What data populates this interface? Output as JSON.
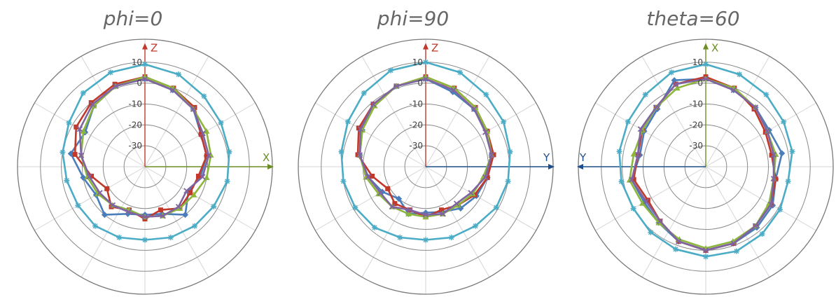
{
  "chart_data": [
    {
      "type": "polar-line",
      "title": "phi=0",
      "r_axis": {
        "range": [
          -40,
          10
        ],
        "ticks": [
          "10",
          "0",
          "-10",
          "-20",
          "-30"
        ]
      },
      "axis_labels": {
        "vertical": "Z",
        "horizontal": "X",
        "vertical_color": "#c0392b",
        "horizontal_color": "#6b8e23"
      },
      "series": [
        {
          "color": "#4a7ebb",
          "marker": "diamond",
          "angles": [
            0,
            20,
            40,
            60,
            80,
            100,
            120,
            140,
            160,
            180,
            200,
            220,
            240,
            260,
            280,
            300,
            320,
            340
          ],
          "values": [
            2,
            -1,
            -4,
            -9,
            -10,
            -13,
            -16,
            -10,
            -16,
            -17,
            -16,
            -10,
            -13,
            -10,
            -4,
            -7,
            -2,
            1
          ]
        },
        {
          "color": "#c0392b",
          "marker": "square",
          "angles": [
            0,
            20,
            40,
            60,
            80,
            100,
            120,
            140,
            160,
            180,
            200,
            220,
            240,
            260,
            280,
            300,
            320,
            340
          ],
          "values": [
            3,
            0,
            -3,
            -9,
            -10,
            -14,
            -15,
            -14,
            -18,
            -15,
            -18,
            -15,
            -19,
            -14,
            -6,
            -2,
            0,
            2
          ]
        },
        {
          "color": "#8cb63c",
          "marker": "triangle",
          "angles": [
            0,
            20,
            40,
            60,
            80,
            100,
            120,
            140,
            160,
            180,
            200,
            220,
            240,
            260,
            280,
            300,
            320,
            340
          ],
          "values": [
            3,
            0,
            -4,
            -6,
            -8,
            -10,
            -13,
            -14,
            -15,
            -16,
            -18,
            -16,
            -14,
            -12,
            -9,
            -6,
            -2,
            1
          ]
        },
        {
          "color": "#8064a2",
          "marker": "x",
          "angles": [
            0,
            20,
            40,
            60,
            80,
            100,
            120,
            140,
            160,
            180,
            200,
            220,
            240,
            260,
            280,
            300,
            320,
            340
          ],
          "values": [
            2,
            -1,
            -4,
            -8,
            -9,
            -12,
            -17,
            -15,
            -15,
            -16,
            -17,
            -16,
            -15,
            -13,
            -9,
            -4,
            -1,
            1
          ]
        },
        {
          "color": "#4bacc6",
          "marker": "star",
          "angles": [
            0,
            20,
            40,
            60,
            80,
            100,
            120,
            140,
            160,
            180,
            200,
            220,
            240,
            260,
            280,
            300,
            320,
            340
          ],
          "values": [
            9,
            7,
            4,
            2,
            1,
            0,
            -2,
            -3,
            -4,
            -5,
            -4,
            -3,
            -3,
            -2,
            0,
            2,
            6,
            8
          ]
        }
      ]
    },
    {
      "type": "polar-line",
      "title": "phi=90",
      "r_axis": {
        "range": [
          -40,
          10
        ],
        "ticks": [
          "10",
          "0",
          "-10",
          "-20",
          "-30"
        ]
      },
      "axis_labels": {
        "vertical": "Z",
        "horizontal": "Y",
        "vertical_color": "#c0392b",
        "horizontal_color": "#1f4e8c"
      },
      "series": [
        {
          "color": "#4a7ebb",
          "marker": "diamond",
          "angles": [
            0,
            20,
            40,
            60,
            80,
            100,
            120,
            140,
            160,
            180,
            200,
            220,
            240,
            260,
            280,
            300,
            320,
            340
          ],
          "values": [
            2,
            -2,
            -4,
            -6,
            -8,
            -10,
            -12,
            -14,
            -17,
            -18,
            -16,
            -20,
            -16,
            -12,
            -8,
            -5,
            -1,
            1
          ]
        },
        {
          "color": "#c0392b",
          "marker": "square",
          "angles": [
            0,
            20,
            40,
            60,
            80,
            100,
            120,
            140,
            160,
            180,
            200,
            220,
            240,
            260,
            280,
            300,
            320,
            340
          ],
          "values": [
            3,
            0,
            -3,
            -6,
            -7,
            -10,
            -13,
            -16,
            -18,
            -16,
            -18,
            -17,
            -19,
            -14,
            -7,
            -3,
            -1,
            1
          ]
        },
        {
          "color": "#8cb63c",
          "marker": "triangle",
          "angles": [
            0,
            20,
            40,
            60,
            80,
            100,
            120,
            140,
            160,
            180,
            200,
            220,
            240,
            260,
            280,
            300,
            320,
            340
          ],
          "values": [
            3,
            0,
            -3,
            -6,
            -8,
            -12,
            -14,
            -16,
            -16,
            -16,
            -16,
            -15,
            -14,
            -11,
            -8,
            -5,
            -2,
            1
          ]
        },
        {
          "color": "#8064a2",
          "marker": "x",
          "angles": [
            0,
            20,
            40,
            60,
            80,
            100,
            120,
            140,
            160,
            180,
            200,
            220,
            240,
            260,
            280,
            300,
            320,
            340
          ],
          "values": [
            2,
            -1,
            -4,
            -7,
            -8,
            -11,
            -15,
            -17,
            -16,
            -17,
            -18,
            -15,
            -15,
            -12,
            -8,
            -4,
            -1,
            1
          ]
        },
        {
          "color": "#4bacc6",
          "marker": "star",
          "angles": [
            0,
            20,
            40,
            60,
            80,
            100,
            120,
            140,
            160,
            180,
            200,
            220,
            240,
            260,
            280,
            300,
            320,
            340
          ],
          "values": [
            10,
            8,
            5,
            3,
            1,
            0,
            -1,
            -3,
            -4,
            -5,
            -4,
            -2,
            -1,
            0,
            1,
            3,
            6,
            9
          ]
        }
      ]
    },
    {
      "type": "polar-line",
      "title": "theta=60",
      "r_axis": {
        "range": [
          -40,
          10
        ],
        "ticks": [
          "10",
          "0",
          "-10",
          "-20",
          "-30"
        ]
      },
      "axis_labels": {
        "vertical": "X",
        "horizontal": "Y",
        "vertical_color": "#6b8e23",
        "horizontal_color": "#1f4e8c"
      },
      "series": [
        {
          "color": "#4a7ebb",
          "marker": "diamond",
          "angles": [
            0,
            20,
            40,
            60,
            80,
            100,
            120,
            140,
            160,
            180,
            200,
            220,
            240,
            260,
            280,
            300,
            320,
            340
          ],
          "values": [
            2,
            -1,
            -3,
            -5,
            -3,
            -6,
            -3,
            -2,
            -1,
            0,
            -2,
            -5,
            -6,
            -4,
            -8,
            -6,
            -4,
            4
          ]
        },
        {
          "color": "#c0392b",
          "marker": "square",
          "angles": [
            0,
            20,
            40,
            60,
            80,
            100,
            120,
            140,
            160,
            180,
            200,
            220,
            240,
            260,
            280,
            300,
            320,
            340
          ],
          "values": [
            3,
            0,
            -4,
            -7,
            -8,
            -6,
            -4,
            -3,
            -1,
            0,
            -2,
            -6,
            -8,
            -5,
            -7,
            -5,
            -3,
            2
          ]
        },
        {
          "color": "#8cb63c",
          "marker": "triangle",
          "angles": [
            0,
            20,
            40,
            60,
            80,
            100,
            120,
            140,
            160,
            180,
            200,
            220,
            240,
            260,
            280,
            300,
            320,
            340
          ],
          "values": [
            2,
            0,
            -3,
            -6,
            -6,
            -7,
            -5,
            -3,
            -2,
            -1,
            -3,
            -5,
            -5,
            -3,
            -5,
            -5,
            -3,
            0
          ]
        },
        {
          "color": "#8064a2",
          "marker": "x",
          "angles": [
            0,
            20,
            40,
            60,
            80,
            100,
            120,
            140,
            160,
            180,
            200,
            220,
            240,
            260,
            280,
            300,
            320,
            340
          ],
          "values": [
            2,
            -1,
            -3,
            -6,
            -7,
            -7,
            -4,
            -3,
            -1,
            0,
            -2,
            -6,
            -7,
            -4,
            -7,
            -4,
            -3,
            2
          ]
        },
        {
          "color": "#4bacc6",
          "marker": "star",
          "angles": [
            0,
            20,
            40,
            60,
            80,
            100,
            120,
            140,
            160,
            180,
            200,
            220,
            240,
            260,
            280,
            300,
            320,
            340
          ],
          "values": [
            9,
            7,
            5,
            3,
            2,
            0,
            1,
            2,
            3,
            3,
            2,
            1,
            0,
            1,
            2,
            3,
            5,
            8
          ]
        }
      ]
    }
  ]
}
